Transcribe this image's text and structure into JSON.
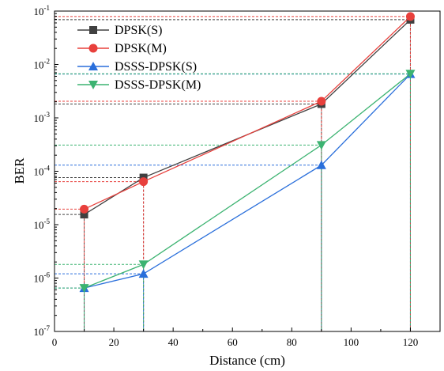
{
  "chart_data": {
    "type": "line",
    "xlabel": "Distance (cm)",
    "ylabel": "BER",
    "xlim": [
      0,
      130
    ],
    "ylim": [
      1e-07,
      0.1
    ],
    "y_scale": "log",
    "x_ticks": [
      0,
      20,
      40,
      60,
      80,
      100,
      120
    ],
    "y_ticks": [
      {
        "value": 1e-07,
        "mantissa": "10",
        "exp": "-7"
      },
      {
        "value": 1e-06,
        "mantissa": "10",
        "exp": "-6"
      },
      {
        "value": 1e-05,
        "mantissa": "10",
        "exp": "-5"
      },
      {
        "value": 0.0001,
        "mantissa": "10",
        "exp": "-4"
      },
      {
        "value": 0.001,
        "mantissa": "10",
        "exp": "-3"
      },
      {
        "value": 0.01,
        "mantissa": "10",
        "exp": "-2"
      },
      {
        "value": 0.1,
        "mantissa": "10",
        "exp": "-1"
      }
    ],
    "grid": false,
    "legend_position": "top-left",
    "x": [
      10,
      30,
      90,
      120
    ],
    "series": [
      {
        "name": "DPSK(S)",
        "color": "#404040",
        "marker": "square",
        "values": [
          1.55e-05,
          7.6e-05,
          0.00182,
          0.069
        ]
      },
      {
        "name": "DPSK(M)",
        "color": "#e8403c",
        "marker": "circle",
        "values": [
          1.95e-05,
          6.4e-05,
          0.00205,
          0.079
        ]
      },
      {
        "name": "DSSS-DPSK(S)",
        "color": "#2a6fdb",
        "marker": "triangle-up",
        "values": [
          6.5e-07,
          1.2e-06,
          0.00013,
          0.0066
        ]
      },
      {
        "name": "DSSS-DPSK(M)",
        "color": "#3cb371",
        "marker": "triangle-down",
        "values": [
          6.5e-07,
          1.8e-06,
          0.00031,
          0.0067
        ]
      }
    ],
    "guide_lines": "dashed drop lines from each point to the axes, in the series color"
  }
}
